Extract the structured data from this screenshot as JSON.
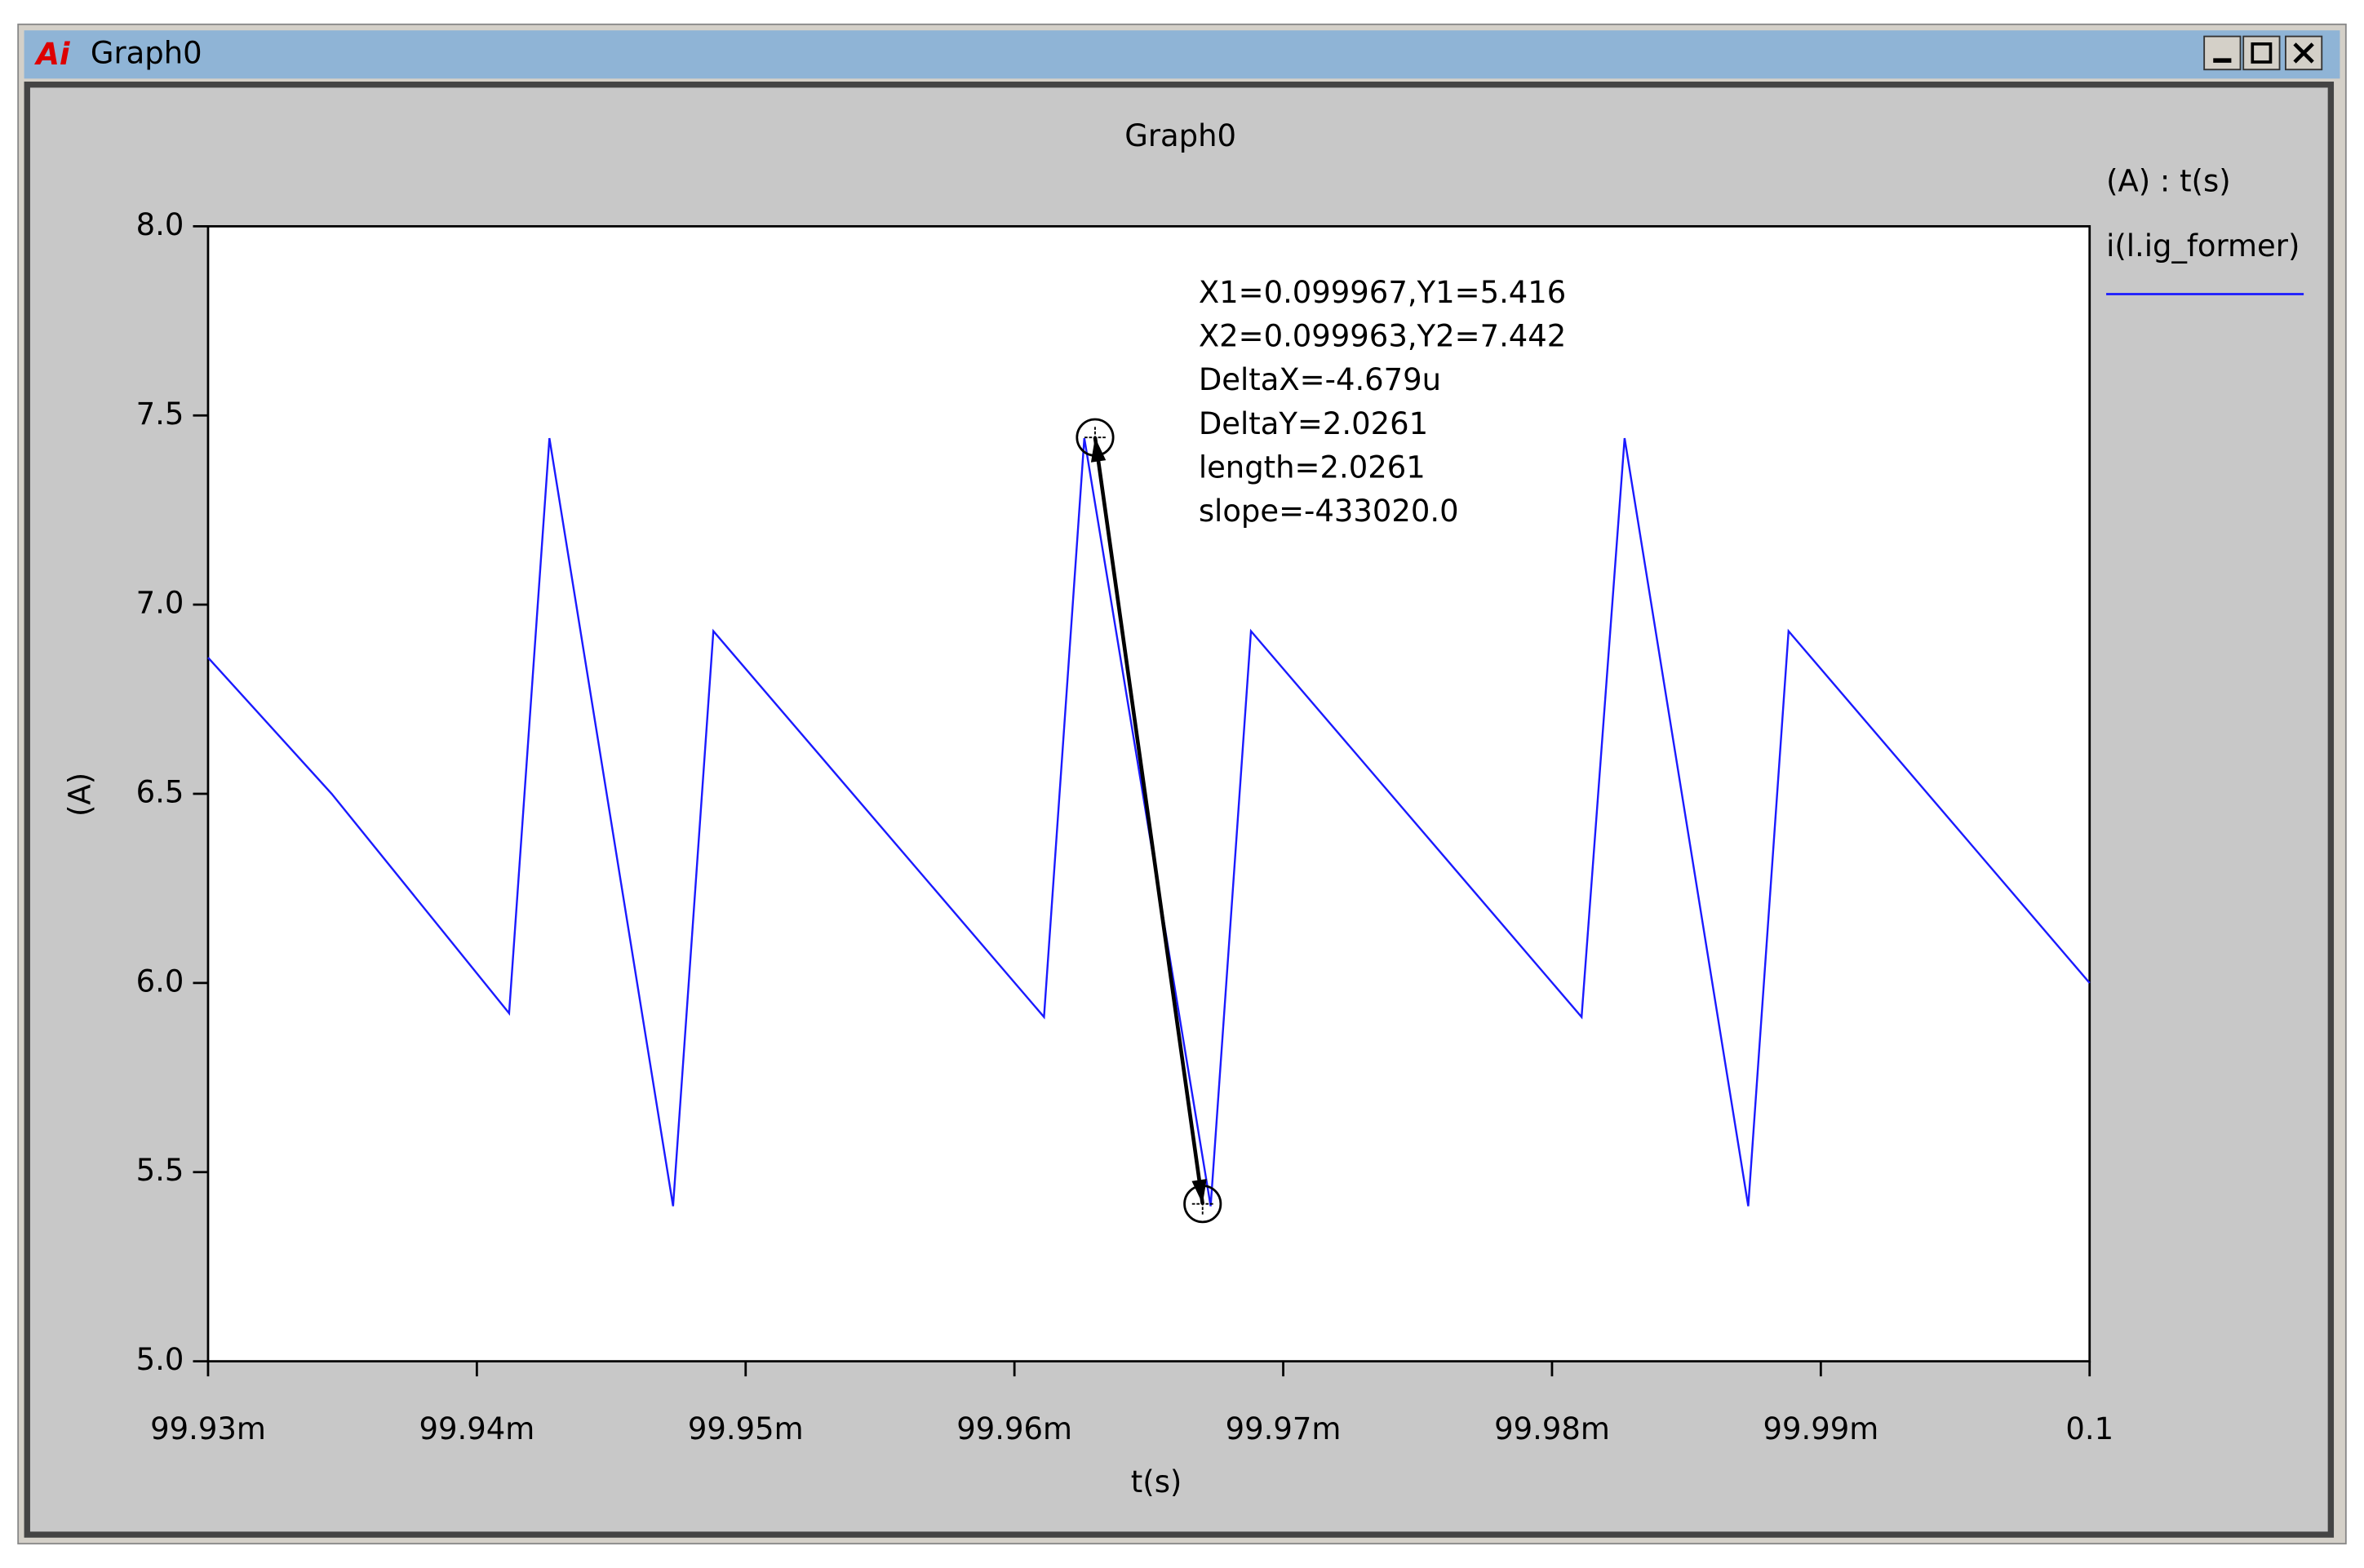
{
  "window": {
    "title": "Graph0"
  },
  "chart_data": {
    "type": "line",
    "title": "Graph0",
    "xlabel": "t(s)",
    "ylabel": "(A)",
    "legend_title": "(A) : t(s)",
    "legend": "right",
    "x": [
      0.09993,
      0.0999346,
      0.0999412,
      0.0999427,
      0.0999473,
      0.0999488,
      0.0999611,
      0.0999626,
      0.0999673,
      0.0999688,
      0.0999811,
      0.0999827,
      0.0999873,
      0.0999888,
      0.1
    ],
    "series": [
      {
        "name": "i(l.ig_former)",
        "color": "#1a1aff",
        "values": [
          6.86,
          6.5,
          5.92,
          7.44,
          5.41,
          6.93,
          5.91,
          7.44,
          5.41,
          6.93,
          5.91,
          7.44,
          5.41,
          6.93,
          6.0
        ]
      }
    ],
    "xlim": [
      0.09993,
      0.1
    ],
    "xticks": [
      {
        "value": 0.09993,
        "label": "99.93m"
      },
      {
        "value": 0.09994,
        "label": "99.94m"
      },
      {
        "value": 0.09995,
        "label": "99.95m"
      },
      {
        "value": 0.09996,
        "label": "99.96m"
      },
      {
        "value": 0.09997,
        "label": "99.97m"
      },
      {
        "value": 0.09998,
        "label": "99.98m"
      },
      {
        "value": 0.09999,
        "label": "99.99m"
      },
      0.1
    ],
    "ylim": [
      5,
      8
    ],
    "yticks": [
      {
        "value": 5,
        "label": "5.0"
      },
      5.5,
      {
        "value": 6,
        "label": "6.0"
      },
      6.5,
      {
        "value": 7,
        "label": "7.0"
      },
      7.5,
      {
        "value": 8,
        "label": "8.0"
      }
    ],
    "grid": false,
    "cursors": [
      {
        "x": 0.099967,
        "y": 5.416
      },
      {
        "x": 0.099963,
        "y": 7.442
      }
    ],
    "annotations": [
      "X1=0.099967,Y1=5.416",
      "X2=0.099963,Y2=7.442",
      "DeltaX=-4.679u",
      "DeltaY=2.0261",
      "length=2.0261",
      "slope=-433020.0"
    ]
  }
}
